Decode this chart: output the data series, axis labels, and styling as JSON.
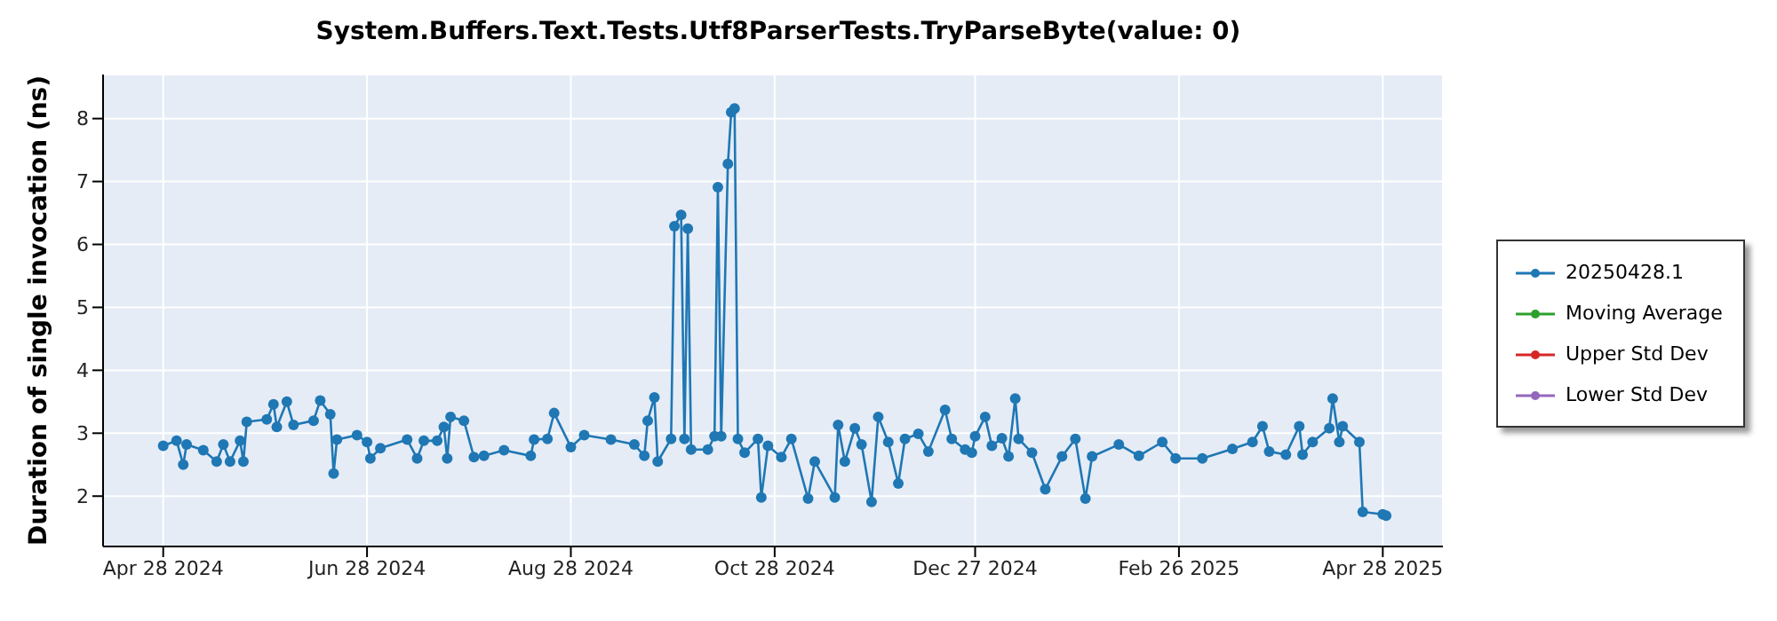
{
  "chart_data": {
    "type": "line",
    "title": "System.Buffers.Text.Tests.Utf8ParserTests.TryParseByte(value: 0)",
    "ylabel": "Duration of single invocation (ns)",
    "x": [
      "2024-04-28",
      "2024-05-02",
      "2024-05-04",
      "2024-05-05",
      "2024-05-10",
      "2024-05-14",
      "2024-05-16",
      "2024-05-18",
      "2024-05-21",
      "2024-05-22",
      "2024-05-23",
      "2024-05-29",
      "2024-05-31",
      "2024-06-01",
      "2024-06-04",
      "2024-06-06",
      "2024-06-12",
      "2024-06-14",
      "2024-06-17",
      "2024-06-18",
      "2024-06-19",
      "2024-06-25",
      "2024-06-28",
      "2024-06-29",
      "2024-07-02",
      "2024-07-10",
      "2024-07-13",
      "2024-07-15",
      "2024-07-19",
      "2024-07-21",
      "2024-07-22",
      "2024-07-23",
      "2024-07-27",
      "2024-07-30",
      "2024-08-02",
      "2024-08-08",
      "2024-08-16",
      "2024-08-17",
      "2024-08-21",
      "2024-08-23",
      "2024-08-28",
      "2024-09-01",
      "2024-09-09",
      "2024-09-16",
      "2024-09-19",
      "2024-09-20",
      "2024-09-22",
      "2024-09-23",
      "2024-09-27",
      "2024-09-28",
      "2024-09-30",
      "2024-10-01",
      "2024-10-02",
      "2024-10-03",
      "2024-10-08",
      "2024-10-10",
      "2024-10-11",
      "2024-10-12",
      "2024-10-14",
      "2024-10-15",
      "2024-10-16",
      "2024-10-17",
      "2024-10-19",
      "2024-10-23",
      "2024-10-24",
      "2024-10-26",
      "2024-10-30",
      "2024-11-02",
      "2024-11-07",
      "2024-11-09",
      "2024-11-15",
      "2024-11-16",
      "2024-11-18",
      "2024-11-21",
      "2024-11-23",
      "2024-11-26",
      "2024-11-28",
      "2024-12-01",
      "2024-12-04",
      "2024-12-06",
      "2024-12-10",
      "2024-12-13",
      "2024-12-18",
      "2024-12-20",
      "2024-12-24",
      "2024-12-26",
      "2024-12-27",
      "2024-12-30",
      "2025-01-01",
      "2025-01-04",
      "2025-01-06",
      "2025-01-08",
      "2025-01-09",
      "2025-01-13",
      "2025-01-17",
      "2025-01-22",
      "2025-01-26",
      "2025-01-29",
      "2025-01-31",
      "2025-02-08",
      "2025-02-14",
      "2025-02-21",
      "2025-02-25",
      "2025-03-05",
      "2025-03-14",
      "2025-03-20",
      "2025-03-23",
      "2025-03-25",
      "2025-03-30",
      "2025-04-03",
      "2025-04-04",
      "2025-04-07",
      "2025-04-12",
      "2025-04-13",
      "2025-04-15",
      "2025-04-16",
      "2025-04-21",
      "2025-04-22",
      "2025-04-28",
      "2025-04-29"
    ],
    "series": [
      {
        "name": "20250428.1",
        "color": "#1f77b4",
        "values": [
          2.8,
          2.88,
          2.5,
          2.82,
          2.73,
          2.55,
          2.82,
          2.55,
          2.88,
          2.55,
          3.18,
          3.22,
          3.46,
          3.1,
          3.5,
          3.13,
          3.2,
          3.52,
          3.3,
          2.36,
          2.9,
          2.97,
          2.86,
          2.6,
          2.76,
          2.9,
          2.6,
          2.88,
          2.88,
          3.1,
          2.6,
          3.26,
          3.2,
          2.62,
          2.64,
          2.73,
          2.64,
          2.9,
          2.91,
          3.32,
          2.78,
          2.97,
          2.9,
          2.82,
          2.64,
          3.2,
          3.57,
          2.55,
          2.91,
          6.29,
          6.47,
          2.91,
          6.25,
          2.74,
          2.74,
          2.95,
          6.91,
          2.95,
          7.28,
          8.1,
          8.16,
          2.91,
          2.69,
          2.91,
          1.98,
          2.8,
          2.62,
          2.91,
          1.96,
          2.55,
          1.98,
          3.13,
          2.55,
          3.08,
          2.82,
          1.91,
          3.26,
          2.86,
          2.2,
          2.91,
          2.99,
          2.71,
          3.37,
          2.91,
          2.74,
          2.69,
          2.95,
          3.26,
          2.8,
          2.92,
          2.63,
          3.55,
          2.91,
          2.69,
          2.11,
          2.63,
          2.91,
          1.96,
          2.63,
          2.82,
          2.64,
          2.86,
          2.6,
          2.6,
          2.75,
          2.86,
          3.11,
          2.71,
          2.66,
          3.11,
          2.66,
          2.86,
          3.08,
          3.55,
          2.86,
          3.11,
          2.86,
          1.75,
          1.71,
          1.69
        ]
      },
      {
        "name": "Moving Average",
        "color": "#2ca02c",
        "values": [
          null,
          null,
          null,
          null,
          null,
          null,
          null,
          null,
          null,
          null,
          null,
          null,
          null,
          null,
          null,
          null,
          null,
          null,
          null,
          null,
          null,
          null,
          null,
          null,
          null,
          null,
          null,
          null,
          null,
          null,
          null,
          null,
          null,
          null,
          null,
          null,
          null,
          null,
          null,
          null,
          null,
          null,
          null,
          null,
          null,
          null,
          null,
          null,
          null,
          null,
          null,
          null,
          null,
          null,
          null,
          null,
          null,
          null,
          null,
          null,
          null,
          null,
          null,
          null,
          null,
          null,
          null,
          null,
          null,
          null,
          null,
          null,
          null,
          null,
          null,
          null,
          null,
          null,
          null,
          null,
          null,
          null,
          null,
          null,
          null,
          null,
          null,
          null,
          null,
          null,
          null,
          null,
          null,
          null,
          null,
          null,
          null,
          null,
          null,
          null,
          null,
          null,
          null,
          null,
          null,
          null,
          null,
          null,
          null,
          null,
          null,
          null,
          null,
          null,
          null,
          null,
          null,
          null,
          null,
          null
        ]
      },
      {
        "name": "Upper Std Dev",
        "color": "#d62728",
        "values": [
          null,
          null,
          null,
          null,
          null,
          null,
          null,
          null,
          null,
          null,
          null,
          null,
          null,
          null,
          null,
          null,
          null,
          null,
          null,
          null,
          null,
          null,
          null,
          null,
          null,
          null,
          null,
          null,
          null,
          null,
          null,
          null,
          null,
          null,
          null,
          null,
          null,
          null,
          null,
          null,
          null,
          null,
          null,
          null,
          null,
          null,
          null,
          null,
          null,
          null,
          null,
          null,
          null,
          null,
          null,
          null,
          null,
          null,
          null,
          null,
          null,
          null,
          null,
          null,
          null,
          null,
          null,
          null,
          null,
          null,
          null,
          null,
          null,
          null,
          null,
          null,
          null,
          null,
          null,
          null,
          null,
          null,
          null,
          null,
          null,
          null,
          null,
          null,
          null,
          null,
          null,
          null,
          null,
          null,
          null,
          null,
          null,
          null,
          null,
          null,
          null,
          null,
          null,
          null,
          null,
          null,
          null,
          null,
          null,
          null,
          null,
          null,
          null,
          null,
          null,
          null,
          null,
          null,
          null,
          null
        ]
      },
      {
        "name": "Lower Std Dev",
        "color": "#9467bd",
        "values": [
          null,
          null,
          null,
          null,
          null,
          null,
          null,
          null,
          null,
          null,
          null,
          null,
          null,
          null,
          null,
          null,
          null,
          null,
          null,
          null,
          null,
          null,
          null,
          null,
          null,
          null,
          null,
          null,
          null,
          null,
          null,
          null,
          null,
          null,
          null,
          null,
          null,
          null,
          null,
          null,
          null,
          null,
          null,
          null,
          null,
          null,
          null,
          null,
          null,
          null,
          null,
          null,
          null,
          null,
          null,
          null,
          null,
          null,
          null,
          null,
          null,
          null,
          null,
          null,
          null,
          null,
          null,
          null,
          null,
          null,
          null,
          null,
          null,
          null,
          null,
          null,
          null,
          null,
          null,
          null,
          null,
          null,
          null,
          null,
          null,
          null,
          null,
          null,
          null,
          null,
          null,
          null,
          null,
          null,
          null,
          null,
          null,
          null,
          null,
          null,
          null,
          null,
          null,
          null,
          null,
          null,
          null,
          null,
          null,
          null,
          null,
          null,
          null,
          null,
          null,
          null,
          null,
          null,
          null,
          null
        ]
      }
    ],
    "xlim": [
      "2024-04-10",
      "2025-05-16"
    ],
    "xticks": [
      {
        "value": "2024-04-28",
        "label": "Apr 28 2024"
      },
      {
        "value": "2024-06-28",
        "label": "Jun 28 2024"
      },
      {
        "value": "2024-08-28",
        "label": "Aug 28 2024"
      },
      {
        "value": "2024-10-28",
        "label": "Oct 28 2024"
      },
      {
        "value": "2024-12-27",
        "label": "Dec 27 2024"
      },
      {
        "value": "2025-02-26",
        "label": "Feb 26 2025"
      },
      {
        "value": "2025-04-28",
        "label": "Apr 28 2025"
      }
    ],
    "ylim": [
      1.2,
      8.7
    ],
    "yticks": [
      2,
      3,
      4,
      5,
      6,
      7,
      8
    ],
    "grid": true,
    "legend": "right",
    "marker": "circle",
    "line_style": "solid"
  }
}
